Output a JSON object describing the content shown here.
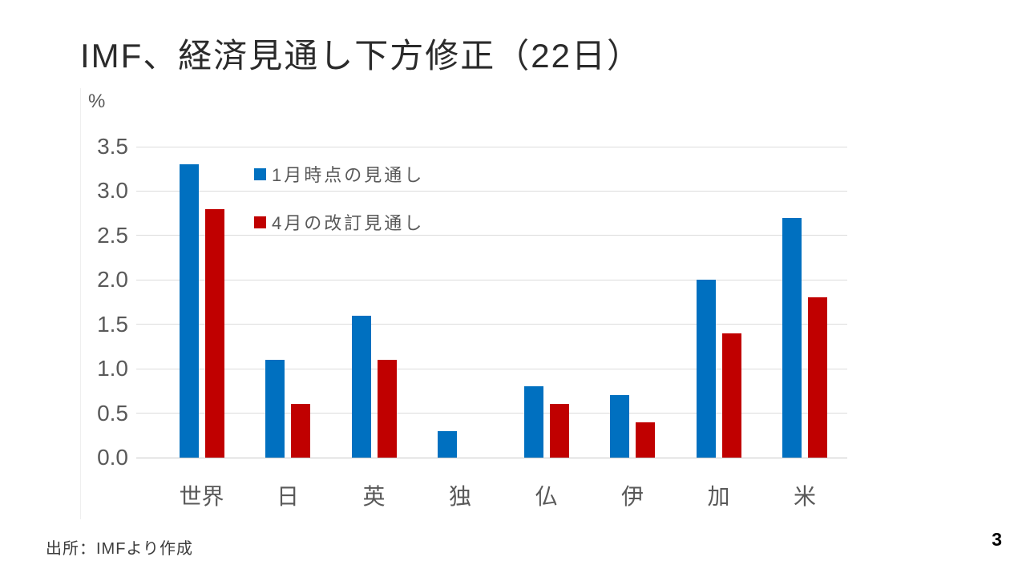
{
  "slide": {
    "title": "IMF、経済見通し下方修正（22日）",
    "source": "出所：IMFより作成",
    "page_number": "3"
  },
  "chart_data": {
    "type": "bar",
    "title": "IMF、経済見通し下方修正（22日）",
    "unit_label": "%",
    "categories": [
      "世界",
      "日",
      "英",
      "独",
      "仏",
      "伊",
      "加",
      "米"
    ],
    "series": [
      {
        "name": "1月時点の見通し",
        "color": "#0070C0",
        "values": [
          3.3,
          1.1,
          1.6,
          0.3,
          0.8,
          0.7,
          2.0,
          2.7
        ]
      },
      {
        "name": "4月の改訂見通し",
        "color": "#C00000",
        "values": [
          2.8,
          0.6,
          1.1,
          0.0,
          0.6,
          0.4,
          1.4,
          1.8
        ]
      }
    ],
    "xlabel": "",
    "ylabel": "%",
    "ylim": [
      0,
      3.5
    ],
    "ytick_step": 0.5,
    "yticks": [
      "0.0",
      "0.5",
      "1.0",
      "1.5",
      "2.0",
      "2.5",
      "3.0",
      "3.5"
    ],
    "grid": true,
    "legend_position": "inside-top-left"
  }
}
